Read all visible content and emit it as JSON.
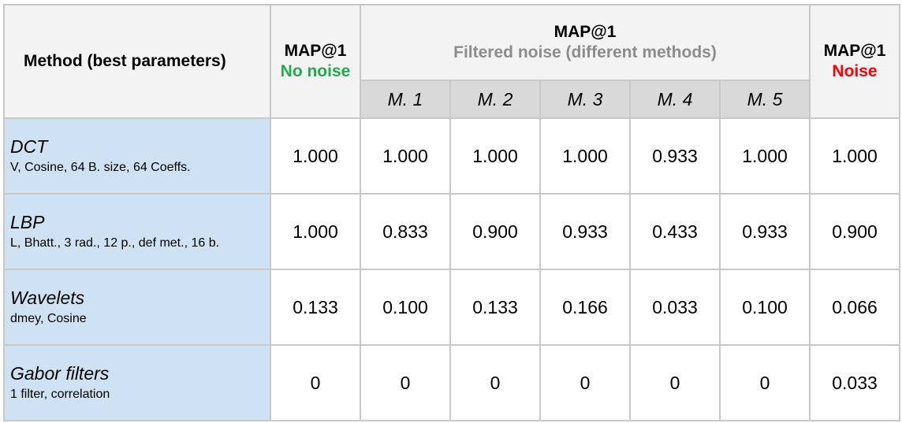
{
  "table": {
    "header": {
      "method_label": "Method (best parameters)",
      "no_noise_title": "MAP@1",
      "no_noise_sub": "No noise",
      "filtered_title": "MAP@1",
      "filtered_sub": "Filtered noise (different methods)",
      "noise_title": "MAP@1",
      "noise_sub": "Noise",
      "sub_columns": [
        "M. 1",
        "M. 2",
        "M. 3",
        "M. 4",
        "M. 5"
      ]
    },
    "rows": [
      {
        "name": "DCT",
        "params": "V, Cosine, 64 B. size, 64 Coeffs.",
        "values": [
          "1.000",
          "1.000",
          "1.000",
          "1.000",
          "0.933",
          "1.000",
          "1.000"
        ]
      },
      {
        "name": "LBP",
        "params": "L, Bhatt., 3 rad., 12 p., def met., 16 b.",
        "values": [
          "1.000",
          "0.833",
          "0.900",
          "0.933",
          "0.433",
          "0.933",
          "0.900"
        ]
      },
      {
        "name": "Wavelets",
        "params": "dmey, Cosine",
        "values": [
          "0.133",
          "0.100",
          "0.133",
          "0.166",
          "0.033",
          "0.100",
          "0.066"
        ]
      },
      {
        "name": "Gabor filters",
        "params": "1 filter, correlation",
        "values": [
          "0",
          "0",
          "0",
          "0",
          "0",
          "0",
          "0.033"
        ]
      }
    ]
  },
  "colors": {
    "header_bg": "#f3f3f3",
    "subheader_bg": "#d9d9d9",
    "label_bg": "#cfe2f3",
    "green": "#22aa4f",
    "red": "#ff0000",
    "grey": "#8c8c8c"
  }
}
